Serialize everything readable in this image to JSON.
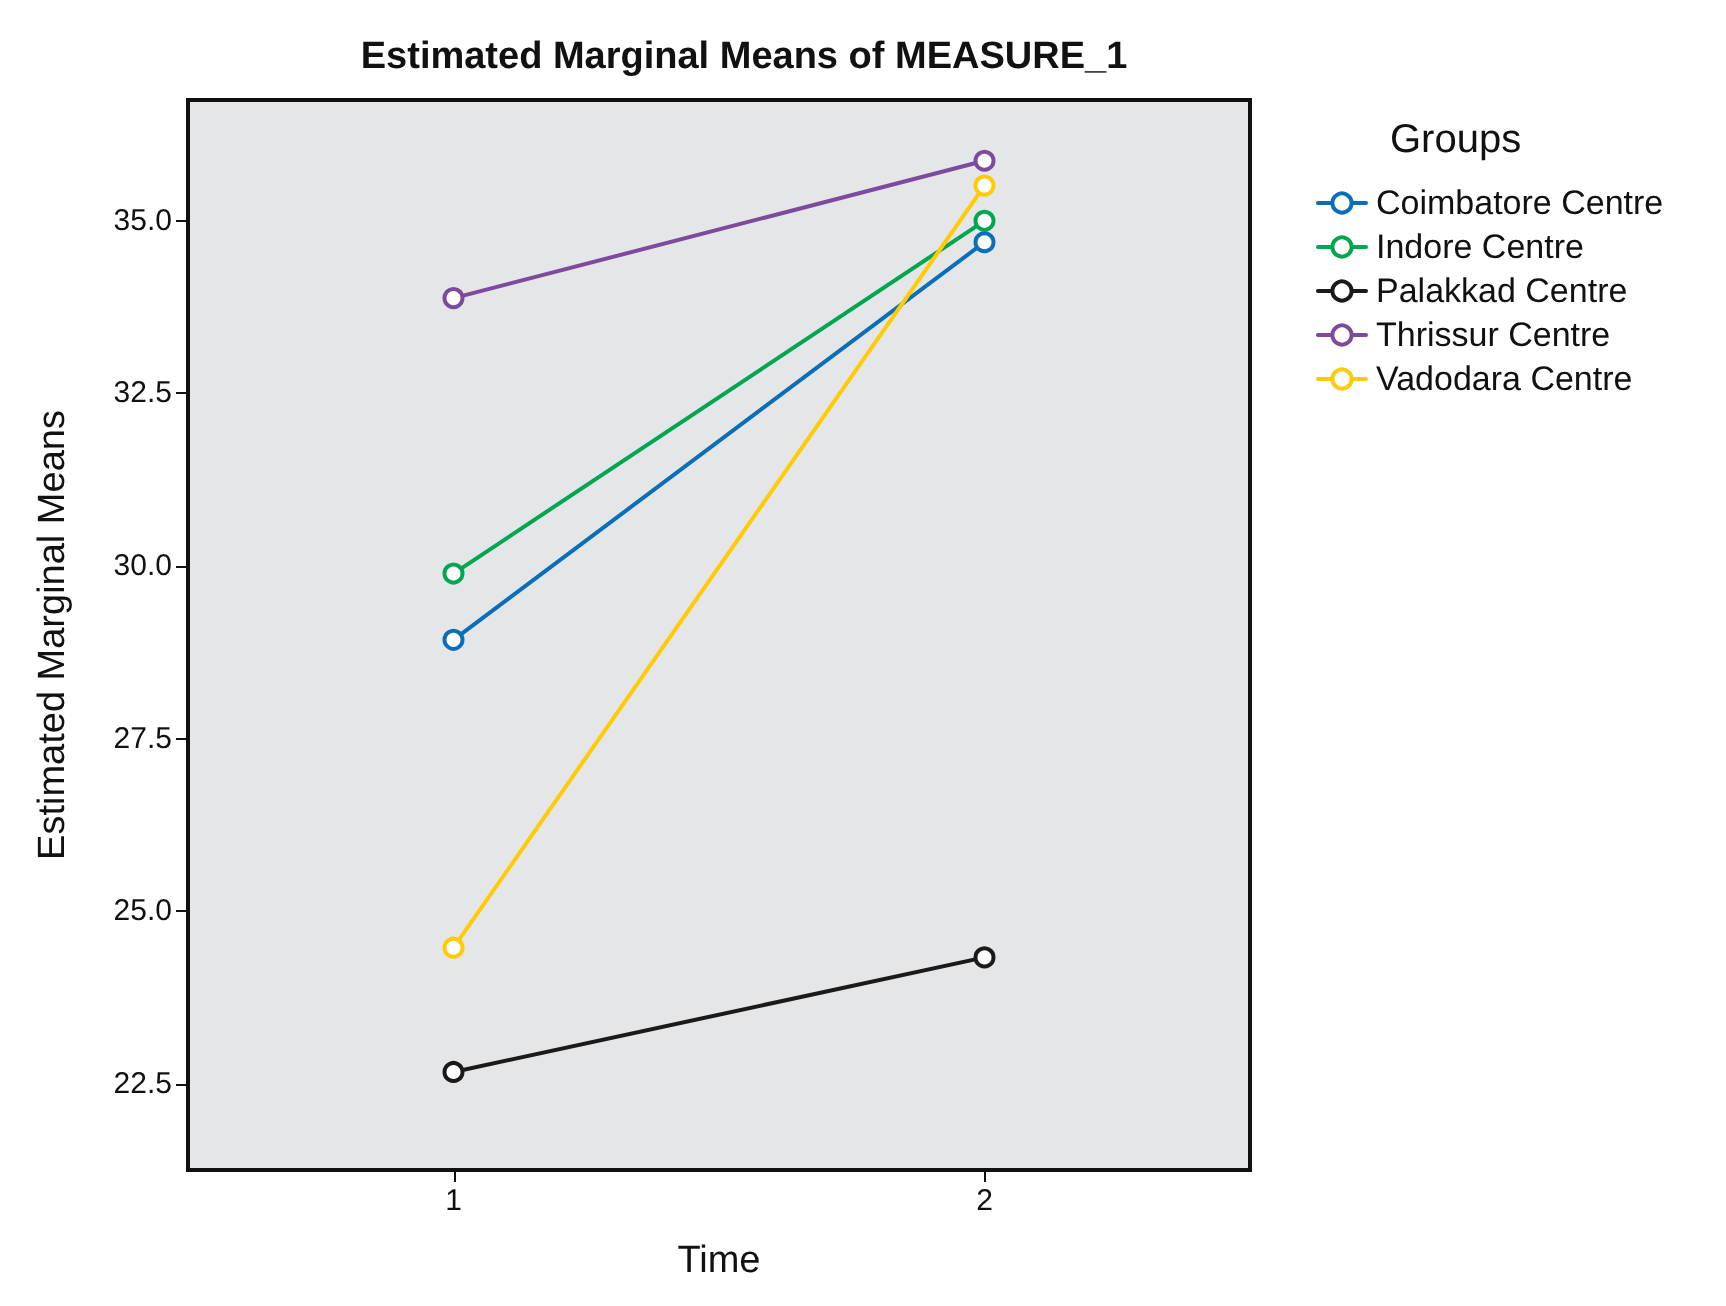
{
  "chart_data": {
    "type": "line",
    "title": "Estimated Marginal Means of MEASURE_1",
    "xlabel": "Time",
    "ylabel": "Estimated Marginal Means",
    "legend_title": "Groups",
    "categories": [
      "1",
      "2"
    ],
    "series": [
      {
        "name": "Coimbatore Centre",
        "color": "#0a6fb8",
        "values": [
          28.93,
          34.69
        ]
      },
      {
        "name": "Indore Centre",
        "color": "#00a650",
        "values": [
          29.89,
          35.0
        ]
      },
      {
        "name": "Palakkad Centre",
        "color": "#1a1a1a",
        "values": [
          22.67,
          24.33
        ]
      },
      {
        "name": "Thrissur Centre",
        "color": "#7d4a9e",
        "values": [
          33.88,
          35.87
        ]
      },
      {
        "name": "Vadodara Centre",
        "color": "#ffcb05",
        "values": [
          24.47,
          35.51
        ]
      }
    ],
    "ylim": [
      21.25,
      36.75
    ],
    "yticks": [
      {
        "value": 22.5,
        "label": "22.5"
      },
      {
        "value": 25,
        "label": "25.0"
      },
      {
        "value": 27.5,
        "label": "27.5"
      },
      {
        "value": 30,
        "label": "30.0"
      },
      {
        "value": 32.5,
        "label": "32.5"
      },
      {
        "value": 35,
        "label": "35.0"
      }
    ],
    "grid": false,
    "legend": "right",
    "marker": "circle",
    "line_style": "solid"
  }
}
